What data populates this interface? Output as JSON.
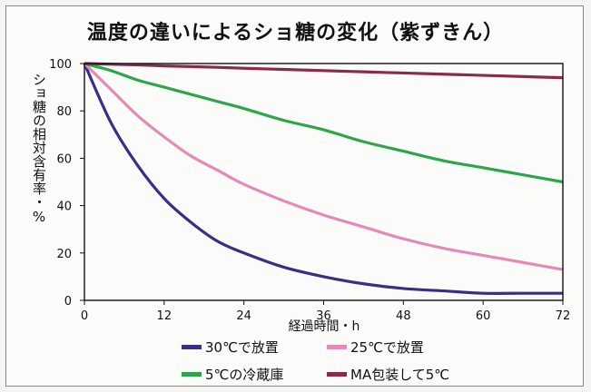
{
  "chart_data": {
    "type": "line",
    "title": "温度の違いによるショ糖の変化（紫ずきん）",
    "ylabel": "ショ糖の相対含有率・%",
    "xlabel": "経過時間・h",
    "x_ticks": [
      0,
      12,
      24,
      36,
      48,
      60,
      72
    ],
    "y_ticks": [
      0,
      20,
      40,
      60,
      80,
      100
    ],
    "xlim": [
      0,
      72
    ],
    "ylim": [
      0,
      100
    ],
    "grid": false,
    "legend_position": "bottom",
    "x": [
      0,
      4,
      8,
      12,
      16,
      20,
      24,
      30,
      36,
      42,
      48,
      54,
      60,
      66,
      72
    ],
    "series": [
      {
        "name": "30℃で放置",
        "color": "#3a2f86",
        "values": [
          100,
          75,
          57,
          43,
          33,
          25,
          20,
          14,
          10,
          7,
          5,
          4,
          3,
          3,
          3
        ]
      },
      {
        "name": "25℃で放置",
        "color": "#e58ab8",
        "values": [
          100,
          89,
          78,
          69,
          61,
          55,
          49,
          42,
          36,
          31,
          26,
          22,
          19,
          16,
          13
        ]
      },
      {
        "name": "5℃の冷蔵庫",
        "color": "#2da64a",
        "values": [
          100,
          97,
          93,
          90,
          87,
          84,
          81,
          76,
          72,
          67,
          63,
          59,
          56,
          53,
          50
        ]
      },
      {
        "name": "MA包装して5℃",
        "color": "#8a2b4c",
        "values": [
          100,
          99.7,
          99.4,
          99,
          98.7,
          98.4,
          98,
          97.5,
          97,
          96.5,
          96,
          95.5,
          95,
          94.5,
          94
        ]
      }
    ]
  }
}
